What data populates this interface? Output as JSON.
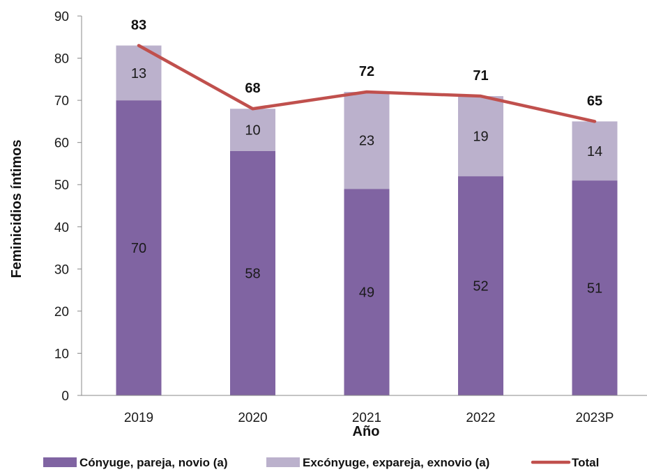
{
  "chart_data": {
    "type": "bar",
    "stacked": true,
    "categories": [
      "2019",
      "2020",
      "2021",
      "2022",
      "2023P"
    ],
    "series": [
      {
        "name": "Cónyuge, pareja, novio (a)",
        "values": [
          70,
          58,
          49,
          52,
          51
        ],
        "color": "#8064a2"
      },
      {
        "name": "Excónyuge, expareja, exnovio (a)",
        "values": [
          13,
          10,
          23,
          19,
          14
        ],
        "color": "#bbb1cc"
      }
    ],
    "line_series": {
      "name": "Total",
      "values": [
        83,
        68,
        72,
        71,
        65
      ],
      "color": "#c0504d"
    },
    "xlabel": "Año",
    "ylabel": "Feminicidios íntimos",
    "ylim": [
      0,
      90
    ],
    "yticks": [
      0,
      10,
      20,
      30,
      40,
      50,
      60,
      70,
      80,
      90
    ],
    "grid": false,
    "legend_position": "bottom"
  }
}
